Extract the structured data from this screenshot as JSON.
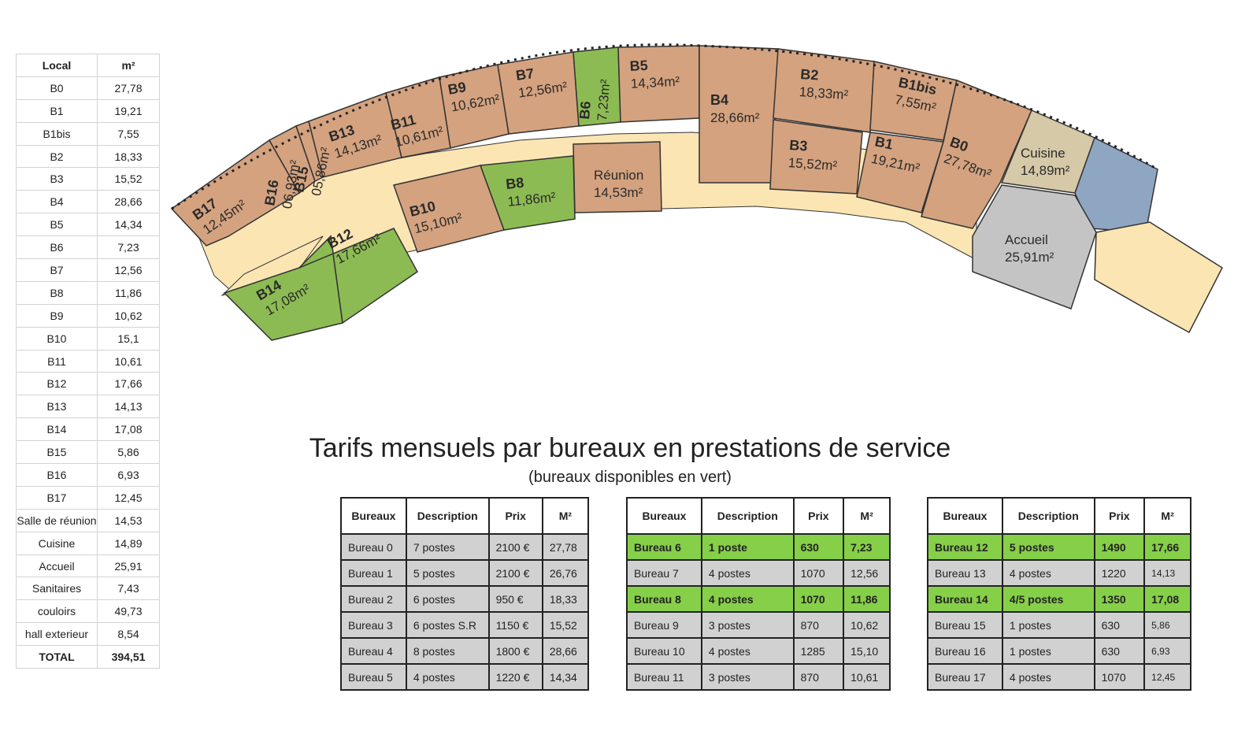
{
  "area_table": {
    "headers": [
      "Local",
      "m²"
    ],
    "rows": [
      [
        "B0",
        "27,78"
      ],
      [
        "B1",
        "19,21"
      ],
      [
        "B1bis",
        "7,55"
      ],
      [
        "B2",
        "18,33"
      ],
      [
        "B3",
        "15,52"
      ],
      [
        "B4",
        "28,66"
      ],
      [
        "B5",
        "14,34"
      ],
      [
        "B6",
        "7,23"
      ],
      [
        "B7",
        "12,56"
      ],
      [
        "B8",
        "11,86"
      ],
      [
        "B9",
        "10,62"
      ],
      [
        "B10",
        "15,1"
      ],
      [
        "B11",
        "10,61"
      ],
      [
        "B12",
        "17,66"
      ],
      [
        "B13",
        "14,13"
      ],
      [
        "B14",
        "17,08"
      ],
      [
        "B15",
        "5,86"
      ],
      [
        "B16",
        "6,93"
      ],
      [
        "B17",
        "12,45"
      ],
      [
        "Salle de réunion",
        "14,53"
      ],
      [
        "Cuisine",
        "14,89"
      ],
      [
        "Accueil",
        "25,91"
      ],
      [
        "Sanitaires",
        "7,43"
      ],
      [
        "couloirs",
        "49,73"
      ],
      [
        "hall exterieur",
        "8,54"
      ]
    ],
    "total": [
      "TOTAL",
      "394,51"
    ]
  },
  "plan": {
    "colors": {
      "occupied": "#d4a27f",
      "available": "#8dbb53",
      "corridor": "#fbe5b3",
      "kitchen": "#d6c9a8",
      "reception": "#c4c4c4",
      "sanitary": "#8fa6c2",
      "stairs": "#fbe5b3"
    },
    "rooms": [
      {
        "code": "B0",
        "area": "27,78m²",
        "status": "occupied"
      },
      {
        "code": "B1",
        "area": "19,21m²",
        "status": "occupied"
      },
      {
        "code": "B1bis",
        "area": "7,55m²",
        "status": "occupied"
      },
      {
        "code": "B2",
        "area": "18,33m²",
        "status": "occupied"
      },
      {
        "code": "B3",
        "area": "15,52m²",
        "status": "occupied"
      },
      {
        "code": "B4",
        "area": "28,66m²",
        "status": "occupied"
      },
      {
        "code": "B5",
        "area": "14,34m²",
        "status": "occupied"
      },
      {
        "code": "B6",
        "area": "7,23m²",
        "status": "available"
      },
      {
        "code": "B7",
        "area": "12,56m²",
        "status": "occupied"
      },
      {
        "code": "B8",
        "area": "11,86m²",
        "status": "available"
      },
      {
        "code": "B9",
        "area": "10,62m²",
        "status": "occupied"
      },
      {
        "code": "B10",
        "area": "15,10m²",
        "status": "occupied"
      },
      {
        "code": "B11",
        "area": "10,61m²",
        "status": "occupied"
      },
      {
        "code": "B12",
        "area": "17,66m²",
        "status": "available"
      },
      {
        "code": "B13",
        "area": "14,13m²",
        "status": "occupied"
      },
      {
        "code": "B14",
        "area": "17,08m²",
        "status": "available"
      },
      {
        "code": "B15",
        "area": "05,86m²",
        "status": "occupied"
      },
      {
        "code": "B16",
        "area": "06,93m²",
        "status": "occupied"
      },
      {
        "code": "B17",
        "area": "12,45m²",
        "status": "occupied"
      },
      {
        "code": "Réunion",
        "area": "14,53m²",
        "status": "occupied"
      },
      {
        "code": "Cuisine",
        "area": "14,89m²",
        "status": "kitchen"
      },
      {
        "code": "Accueil",
        "area": "25,91m²",
        "status": "reception"
      }
    ]
  },
  "pricing": {
    "title": "Tarifs mensuels par bureaux en prestations de service",
    "subtitle": "(bureaux disponibles en vert)",
    "headers": [
      "Bureaux",
      "Description",
      "Prix",
      "M²"
    ],
    "tables": [
      [
        {
          "bureau": "Bureau 0",
          "desc": "7 postes",
          "prix": "2100 €",
          "m2": "27,78",
          "available": false
        },
        {
          "bureau": "Bureau 1",
          "desc": "5 postes",
          "prix": "2100 €",
          "m2": "26,76",
          "available": false
        },
        {
          "bureau": "Bureau 2",
          "desc": "6 postes",
          "prix": "950 €",
          "m2": "18,33",
          "available": false
        },
        {
          "bureau": "Bureau 3",
          "desc": "6 postes S.R",
          "prix": "1150 €",
          "m2": "15,52",
          "available": false
        },
        {
          "bureau": "Bureau 4",
          "desc": "8 postes",
          "prix": "1800 €",
          "m2": "28,66",
          "available": false
        },
        {
          "bureau": "Bureau 5",
          "desc": "4 postes",
          "prix": "1220 €",
          "m2": "14,34",
          "available": false
        }
      ],
      [
        {
          "bureau": "Bureau 6",
          "desc": "1 poste",
          "prix": "630",
          "m2": "7,23",
          "available": true
        },
        {
          "bureau": "Bureau 7",
          "desc": "4 postes",
          "prix": "1070",
          "m2": "12,56",
          "available": false
        },
        {
          "bureau": "Bureau 8",
          "desc": "4 postes",
          "prix": "1070",
          "m2": "11,86",
          "available": true
        },
        {
          "bureau": "Bureau 9",
          "desc": "3 postes",
          "prix": "870",
          "m2": "10,62",
          "available": false
        },
        {
          "bureau": "Bureau 10",
          "desc": "4 postes",
          "prix": "1285",
          "m2": "15,10",
          "available": false
        },
        {
          "bureau": "Bureau 11",
          "desc": "3 postes",
          "prix": "870",
          "m2": "10,61",
          "available": false
        }
      ],
      [
        {
          "bureau": "Bureau 12",
          "desc": "5 postes",
          "prix": "1490",
          "m2": "17,66",
          "available": true
        },
        {
          "bureau": "Bureau 13",
          "desc": "4 postes",
          "prix": "1220",
          "m2": "14,13",
          "available": false
        },
        {
          "bureau": "Bureau 14",
          "desc": "4/5 postes",
          "prix": "1350",
          "m2": "17,08",
          "available": true
        },
        {
          "bureau": "Bureau 15",
          "desc": "1 postes",
          "prix": "630",
          "m2": "5,86",
          "available": false
        },
        {
          "bureau": "Bureau 16",
          "desc": "1  postes",
          "prix": "630",
          "m2": "6,93",
          "available": false
        },
        {
          "bureau": "Bureau 17",
          "desc": "4 postes",
          "prix": "1070",
          "m2": "12,45",
          "available": false
        }
      ]
    ]
  }
}
